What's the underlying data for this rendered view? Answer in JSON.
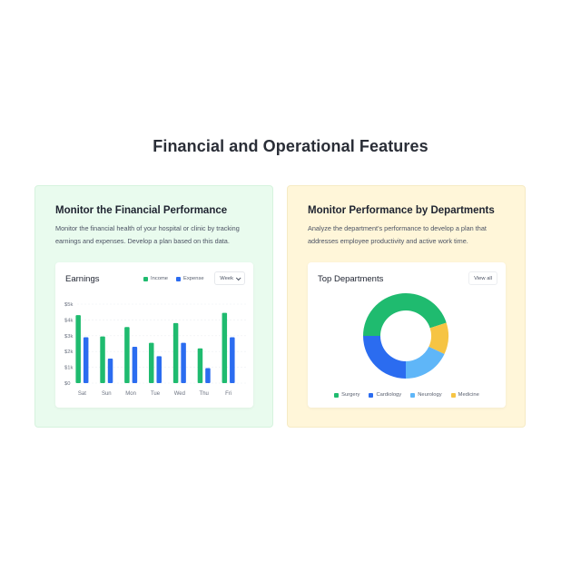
{
  "page": {
    "title": "Financial and Operational Features"
  },
  "colors": {
    "income": "#1fbb6f",
    "expense": "#2b6cf0",
    "surgery": "#1fbb6f",
    "cardiology": "#2b6cf0",
    "neurology": "#5fb6f8",
    "medicine": "#f6c443"
  },
  "financial": {
    "title": "Monitor the Financial Performance",
    "description": "Monitor the financial health of your hospital or clinic by tracking earnings and expenses. Develop a plan based on this data.",
    "panel_title": "Earnings",
    "legend": {
      "income": "Income",
      "expense": "Expense"
    },
    "period_select": "Week"
  },
  "departments": {
    "title": "Monitor Performance by Departments",
    "description": "Analyze the department's performance to develop a plan that addresses employee productivity and active work time.",
    "panel_title": "Top Departments",
    "view_all": "View all"
  },
  "chart_data": [
    {
      "type": "bar",
      "categories": [
        "Sat",
        "Sun",
        "Mon",
        "Tue",
        "Wed",
        "Thu",
        "Fri"
      ],
      "series": [
        {
          "name": "Income",
          "values": [
            4300,
            2950,
            3550,
            2550,
            3800,
            2200,
            4450
          ]
        },
        {
          "name": "Expense",
          "values": [
            2900,
            1550,
            2300,
            1700,
            2550,
            950,
            2900
          ]
        }
      ],
      "y_ticks": [
        "$5k",
        "$4k",
        "$3k",
        "$2k",
        "$1k",
        "$0"
      ],
      "ylim": [
        0,
        5000
      ],
      "grid": true
    },
    {
      "type": "pie",
      "donut": true,
      "categories": [
        "Surgery",
        "Cardiology",
        "Neurology",
        "Medicine"
      ],
      "values": [
        45,
        25,
        18,
        12
      ]
    }
  ]
}
